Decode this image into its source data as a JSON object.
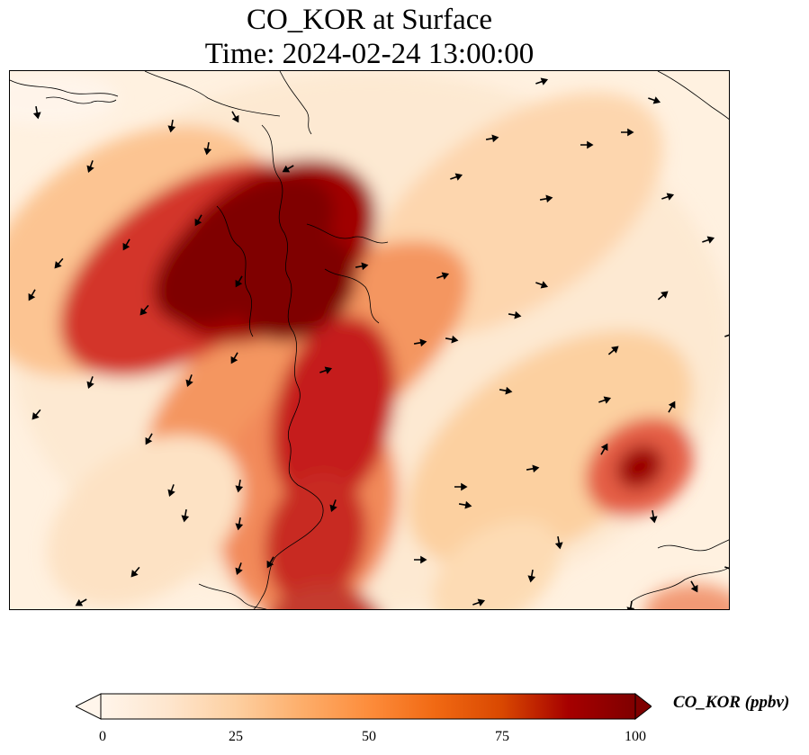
{
  "title": {
    "line1": "CO_KOR at Surface",
    "line2": "Time: 2024-02-24 13:00:00"
  },
  "colorbar": {
    "label": "CO_KOR (ppbv)",
    "ticks": [
      "0",
      "25",
      "50",
      "75",
      "100"
    ],
    "min": 0,
    "max": 100,
    "extend": "both",
    "colormap": [
      "#fff5eb",
      "#fee6ce",
      "#fdd0a2",
      "#fdae6b",
      "#fd8d3c",
      "#f16913",
      "#d94801",
      "#a60000",
      "#7f0000"
    ]
  },
  "map": {
    "variable": "CO_KOR",
    "level": "Surface",
    "units": "ppbv",
    "features": [
      "coastlines",
      "wind-vectors"
    ]
  }
}
